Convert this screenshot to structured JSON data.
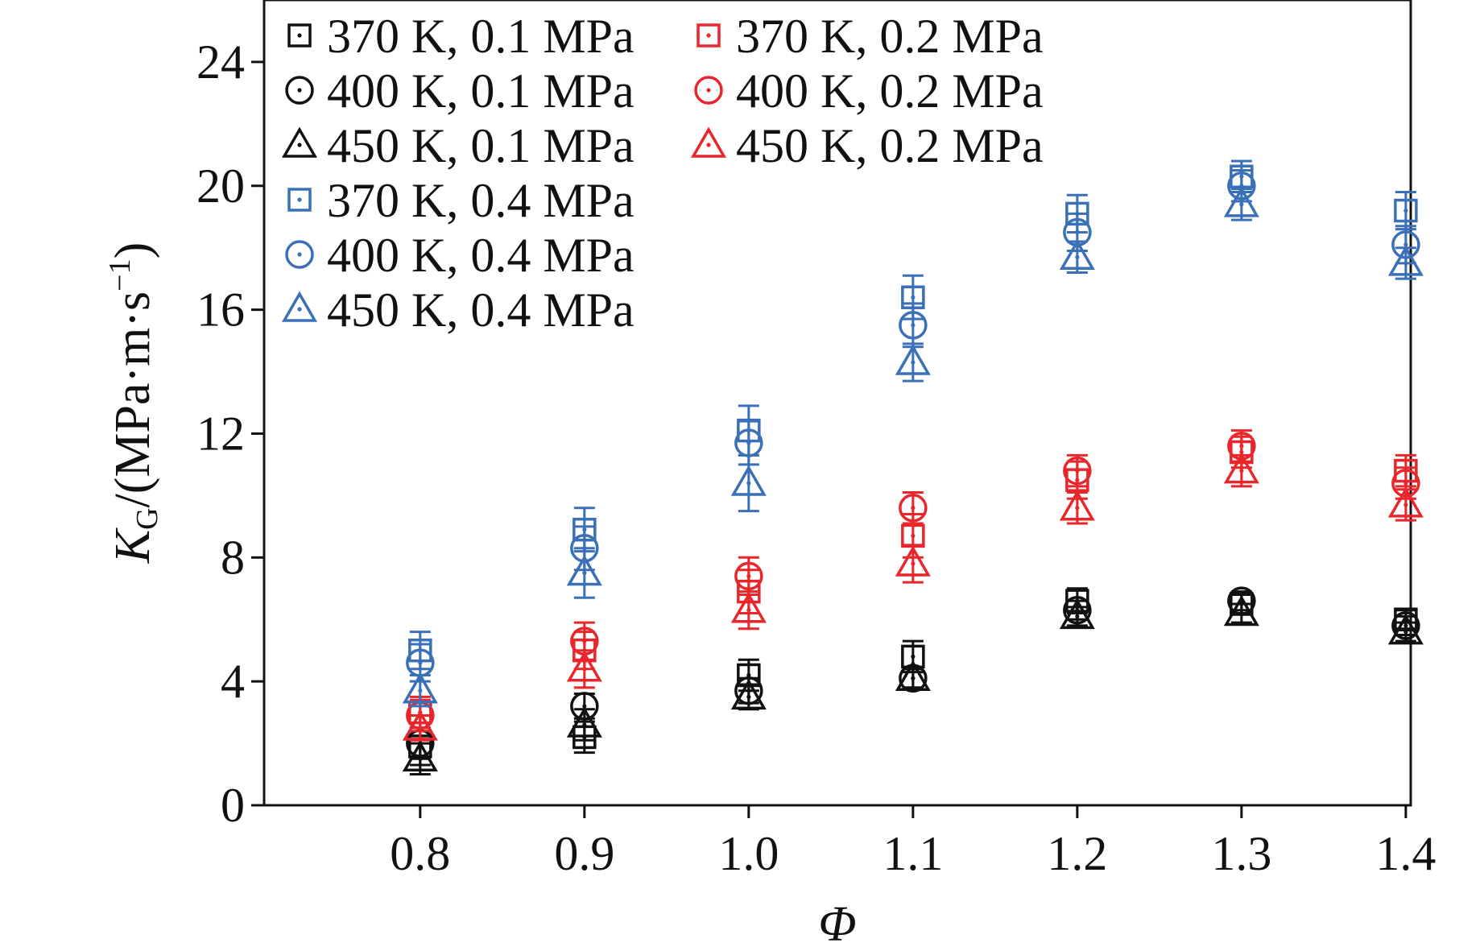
{
  "chart_data": {
    "type": "scatter",
    "title": "",
    "xlabel": "Φ",
    "ylabel": {
      "main": "K",
      "sub": "G",
      "unit": "/(MPa·m·s",
      "exp": "−1",
      "close": ")"
    },
    "x": [
      0.8,
      0.9,
      1.0,
      1.1,
      1.2,
      1.3,
      1.4
    ],
    "x_tick_labels": [
      "0.8",
      "0.9",
      "1.0",
      "1.1",
      "1.2",
      "1.3",
      "1.4"
    ],
    "y_ticks": [
      0,
      4,
      8,
      12,
      16,
      20,
      24
    ],
    "y_tick_labels": [
      "0",
      "4",
      "8",
      "12",
      "16",
      "20",
      "24"
    ],
    "xlim": [
      0.705,
      1.403
    ],
    "ylim": [
      0,
      26
    ],
    "grid": false,
    "legend_position": "top-left",
    "series": [
      {
        "name": "370 K, 0.1 MPa",
        "color": "#111111",
        "marker": "square",
        "values": [
          1.9,
          2.2,
          4.2,
          4.8,
          6.6,
          6.5,
          6.0
        ],
        "err": [
          0.6,
          0.5,
          0.5,
          0.5,
          0.4,
          0.3,
          0.3
        ]
      },
      {
        "name": "400 K, 0.1 MPa",
        "color": "#111111",
        "marker": "circle",
        "values": [
          2.0,
          3.2,
          3.7,
          4.1,
          6.3,
          6.6,
          5.8
        ],
        "err": [
          0.5,
          0.4,
          0.4,
          0.3,
          0.3,
          0.3,
          0.3
        ]
      },
      {
        "name": "450 K, 0.1 MPa",
        "color": "#111111",
        "marker": "triangle",
        "values": [
          1.5,
          2.6,
          3.5,
          4.1,
          6.1,
          6.2,
          5.6
        ],
        "err": [
          0.5,
          0.5,
          0.4,
          0.3,
          0.3,
          0.3,
          0.3
        ]
      },
      {
        "name": "370 K, 0.2 MPa",
        "color": "#e8262b",
        "marker": "square",
        "values": [
          3.0,
          5.0,
          6.9,
          8.7,
          10.5,
          11.4,
          10.8
        ],
        "err": [
          0.5,
          0.6,
          0.7,
          0.7,
          0.6,
          0.5,
          0.5
        ]
      },
      {
        "name": "400 K, 0.2 MPa",
        "color": "#e8262b",
        "marker": "circle",
        "values": [
          2.9,
          5.3,
          7.4,
          9.6,
          10.8,
          11.6,
          10.4
        ],
        "err": [
          0.5,
          0.6,
          0.6,
          0.5,
          0.5,
          0.5,
          0.5
        ]
      },
      {
        "name": "450 K, 0.2 MPa",
        "color": "#e8262b",
        "marker": "triangle",
        "values": [
          2.5,
          4.4,
          6.3,
          7.8,
          9.6,
          10.8,
          9.7
        ],
        "err": [
          0.4,
          0.6,
          0.6,
          0.6,
          0.5,
          0.5,
          0.5
        ]
      },
      {
        "name": "370 K, 0.4 MPa",
        "color": "#3a70b8",
        "marker": "square",
        "values": [
          5.0,
          8.9,
          12.1,
          16.4,
          19.1,
          20.3,
          19.2
        ],
        "err": [
          0.6,
          0.7,
          0.8,
          0.7,
          0.6,
          0.5,
          0.6
        ]
      },
      {
        "name": "400 K, 0.4 MPa",
        "color": "#3a70b8",
        "marker": "circle",
        "values": [
          4.6,
          8.3,
          11.7,
          15.5,
          18.5,
          20.0,
          18.1
        ],
        "err": [
          0.6,
          0.7,
          0.7,
          0.7,
          0.6,
          0.5,
          0.6
        ]
      },
      {
        "name": "450 K, 0.4 MPa",
        "color": "#3a70b8",
        "marker": "triangle",
        "values": [
          3.7,
          7.5,
          10.4,
          14.3,
          17.7,
          19.4,
          17.5
        ],
        "err": [
          0.5,
          0.8,
          0.9,
          0.6,
          0.5,
          0.5,
          0.5
        ]
      }
    ]
  }
}
